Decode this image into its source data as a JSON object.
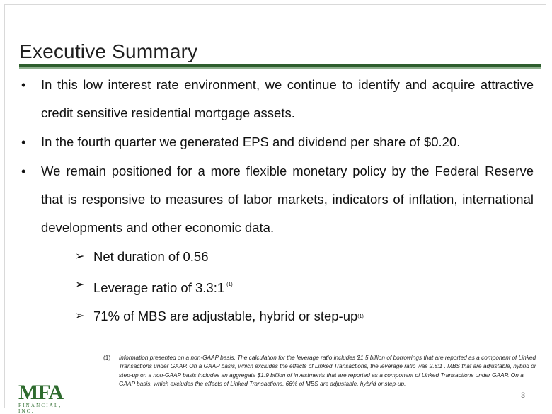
{
  "slide": {
    "title": "Executive Summary",
    "bullets": [
      "In this low interest rate environment, we continue to identify and acquire attractive credit sensitive residential mortgage assets.",
      "In the fourth quarter we generated EPS and dividend per share of $0.20.",
      "We remain positioned for a more flexible monetary policy by the Federal Reserve that is responsive to measures of labor markets, indicators of inflation, international  developments and other economic data."
    ],
    "sub_bullets": [
      {
        "text": "Net duration of 0.56",
        "note": ""
      },
      {
        "text": "Leverage ratio of 3.3:1",
        "note": "(1)"
      },
      {
        "text": "71% of MBS are adjustable, hybrid or step-up",
        "note": "(1)"
      }
    ],
    "footnote": {
      "mark": "(1)",
      "text": "Information presented on a non-GAAP basis.  The  calculation for the leverage ratio includes $1.5 billion of borrowings that are reported as a component of Linked Transactions under GAAP. On a GAAP basis, which excludes the effects of Linked Transactions, the leverage ratio was 2.8:1 . MBS that are adjustable, hybrid or step-up on a non-GAAP basis includes an aggregate $1.9 billion of  investments that are reported as a component of Linked Transactions under GAAP. On a GAAP basis, which excludes the effects of Linked Transactions, 66% of MBS are adjustable, hybrid or step-up."
    },
    "logo": {
      "letters": "MFA",
      "subtitle": "FINANCIAL, INC."
    },
    "page_number": "3",
    "colors": {
      "accent": "#2e5e2e",
      "accent_light": "#8fb08f"
    }
  }
}
